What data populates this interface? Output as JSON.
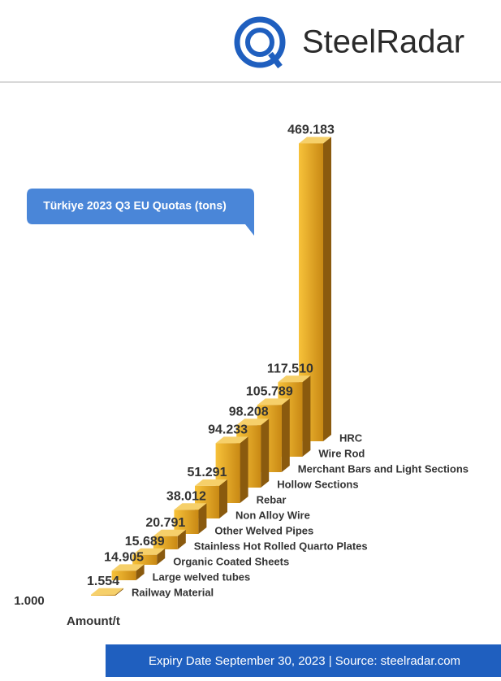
{
  "header": {
    "logo": "SteelRadar"
  },
  "chart_data": {
    "type": "bar3d",
    "title": "Türkiye 2023 Q3 EU Quotas (tons)",
    "y_label": "Amount/t",
    "categories": [
      "Railway Material",
      "Large welved tubes",
      "Organic Coated Sheets",
      "Stainless Hot Rolled Quarto Plates",
      "Other Welved Pipes",
      "Non Alloy Wire",
      "Rebar",
      "Hollow Sections",
      "Merchant Bars and Light Sections",
      "Wire Rod",
      "HRC"
    ],
    "values": [
      1.554,
      14.905,
      15.689,
      20.791,
      38.012,
      51.291,
      94.233,
      98.208,
      105.789,
      117.51,
      469.183
    ],
    "value_labels": [
      "1.554",
      "14.905",
      "15.689",
      "20.791",
      "38.012",
      "51.291",
      "94.233",
      "98.208",
      "105.789",
      "117.510",
      "469.183"
    ],
    "color": "#eeaa22",
    "ylim": [
      0,
      480
    ],
    "yticks": [
      {
        "value": 1,
        "label": "1.000"
      }
    ]
  },
  "footer": {
    "text": "Expiry Date September 30, 2023 | Source: steelradar.com"
  }
}
